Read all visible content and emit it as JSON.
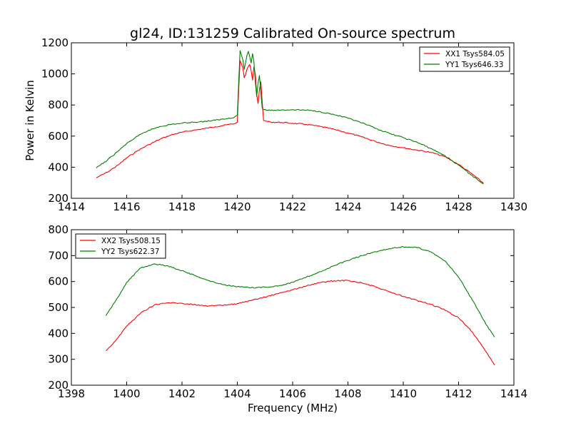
{
  "figure": {
    "title": "gl24, ID:131259 Calibrated On-source spectrum",
    "colors": {
      "red": "#ff0000",
      "green": "#007f00",
      "axes": "#000000",
      "background": "#ffffff"
    }
  },
  "chart_data": [
    {
      "type": "line",
      "title": "gl24, ID:131259 Calibrated On-source spectrum",
      "xlabel": "",
      "ylabel": "Power in Kelvin",
      "xlim": [
        1414,
        1430
      ],
      "ylim": [
        200,
        1200
      ],
      "xticks": [
        "1414",
        "1416",
        "1418",
        "1420",
        "1422",
        "1424",
        "1426",
        "1428",
        "1430"
      ],
      "yticks": [
        "200",
        "400",
        "600",
        "800",
        "1000",
        "1200"
      ],
      "grid": false,
      "legend": "top-right",
      "series": [
        {
          "name": "XX1 Tsys584.05",
          "color": "#ff0000",
          "points": [
            [
              1414.9,
              332
            ],
            [
              1415.3,
              368
            ],
            [
              1415.7,
              415
            ],
            [
              1416.0,
              460
            ],
            [
              1416.4,
              507
            ],
            [
              1416.8,
              545
            ],
            [
              1417.2,
              580
            ],
            [
              1417.6,
              607
            ],
            [
              1418.0,
              625
            ],
            [
              1418.4,
              637
            ],
            [
              1418.8,
              648
            ],
            [
              1419.2,
              660
            ],
            [
              1419.6,
              672
            ],
            [
              1419.9,
              680
            ],
            [
              1420.0,
              690
            ],
            [
              1420.05,
              900
            ],
            [
              1420.1,
              1085
            ],
            [
              1420.2,
              1040
            ],
            [
              1420.25,
              975
            ],
            [
              1420.35,
              1030
            ],
            [
              1420.45,
              1060
            ],
            [
              1420.5,
              1020
            ],
            [
              1420.55,
              960
            ],
            [
              1420.6,
              1045
            ],
            [
              1420.65,
              1000
            ],
            [
              1420.7,
              870
            ],
            [
              1420.75,
              810
            ],
            [
              1420.8,
              900
            ],
            [
              1420.85,
              950
            ],
            [
              1420.9,
              820
            ],
            [
              1420.95,
              700
            ],
            [
              1421.2,
              690
            ],
            [
              1421.6,
              688
            ],
            [
              1422.0,
              682
            ],
            [
              1422.5,
              675
            ],
            [
              1423.0,
              662
            ],
            [
              1423.5,
              643
            ],
            [
              1424.0,
              620
            ],
            [
              1424.5,
              595
            ],
            [
              1425.0,
              565
            ],
            [
              1425.5,
              540
            ],
            [
              1426.0,
              525
            ],
            [
              1426.5,
              510
            ],
            [
              1427.0,
              495
            ],
            [
              1427.5,
              468
            ],
            [
              1428.0,
              418
            ],
            [
              1428.5,
              355
            ],
            [
              1428.9,
              297
            ]
          ]
        },
        {
          "name": "YY1 Tsys646.33",
          "color": "#007f00",
          "points": [
            [
              1414.9,
              395
            ],
            [
              1415.3,
              445
            ],
            [
              1415.7,
              505
            ],
            [
              1416.0,
              552
            ],
            [
              1416.4,
              600
            ],
            [
              1416.8,
              637
            ],
            [
              1417.2,
              662
            ],
            [
              1417.6,
              675
            ],
            [
              1418.0,
              683
            ],
            [
              1418.4,
              689
            ],
            [
              1418.8,
              694
            ],
            [
              1419.2,
              702
            ],
            [
              1419.6,
              712
            ],
            [
              1419.9,
              722
            ],
            [
              1420.0,
              735
            ],
            [
              1420.05,
              950
            ],
            [
              1420.1,
              1150
            ],
            [
              1420.2,
              1090
            ],
            [
              1420.25,
              1030
            ],
            [
              1420.35,
              1120
            ],
            [
              1420.4,
              1145
            ],
            [
              1420.45,
              1110
            ],
            [
              1420.5,
              1070
            ],
            [
              1420.55,
              1130
            ],
            [
              1420.6,
              1080
            ],
            [
              1420.65,
              950
            ],
            [
              1420.7,
              855
            ],
            [
              1420.75,
              940
            ],
            [
              1420.8,
              990
            ],
            [
              1420.85,
              880
            ],
            [
              1420.9,
              780
            ],
            [
              1420.95,
              770
            ],
            [
              1421.2,
              765
            ],
            [
              1421.6,
              768
            ],
            [
              1422.0,
              770
            ],
            [
              1422.5,
              767
            ],
            [
              1423.0,
              757
            ],
            [
              1423.5,
              738
            ],
            [
              1424.0,
              715
            ],
            [
              1424.5,
              685
            ],
            [
              1425.0,
              650
            ],
            [
              1425.5,
              617
            ],
            [
              1426.0,
              590
            ],
            [
              1426.5,
              560
            ],
            [
              1427.0,
              520
            ],
            [
              1427.5,
              475
            ],
            [
              1428.0,
              413
            ],
            [
              1428.5,
              345
            ],
            [
              1428.9,
              292
            ]
          ]
        }
      ]
    },
    {
      "type": "line",
      "title": "",
      "xlabel": "Frequency (MHz)",
      "ylabel": "",
      "xlim": [
        1398,
        1414
      ],
      "ylim": [
        200,
        800
      ],
      "xticks": [
        "1398",
        "1400",
        "1402",
        "1404",
        "1406",
        "1408",
        "1410",
        "1412",
        "1414"
      ],
      "yticks": [
        "200",
        "300",
        "400",
        "500",
        "600",
        "700",
        "800"
      ],
      "grid": false,
      "legend": "top-left",
      "series": [
        {
          "name": "XX2 Tsys508.15",
          "color": "#ff0000",
          "points": [
            [
              1399.25,
              333
            ],
            [
              1399.6,
              372
            ],
            [
              1400.0,
              428
            ],
            [
              1400.5,
              478
            ],
            [
              1401.0,
              510
            ],
            [
              1401.5,
              518
            ],
            [
              1402.0,
              516
            ],
            [
              1402.5,
              510
            ],
            [
              1403.0,
              506
            ],
            [
              1403.5,
              508
            ],
            [
              1404.0,
              515
            ],
            [
              1404.5,
              526
            ],
            [
              1405.0,
              540
            ],
            [
              1405.5,
              554
            ],
            [
              1406.0,
              568
            ],
            [
              1406.5,
              583
            ],
            [
              1407.0,
              596
            ],
            [
              1407.5,
              603
            ],
            [
              1408.0,
              604
            ],
            [
              1408.5,
              595
            ],
            [
              1409.0,
              579
            ],
            [
              1409.5,
              560
            ],
            [
              1410.0,
              542
            ],
            [
              1410.5,
              527
            ],
            [
              1411.0,
              512
            ],
            [
              1411.5,
              490
            ],
            [
              1412.0,
              460
            ],
            [
              1412.5,
              405
            ],
            [
              1413.0,
              328
            ],
            [
              1413.3,
              278
            ]
          ]
        },
        {
          "name": "YY2 Tsys622.37",
          "color": "#007f00",
          "points": [
            [
              1399.25,
              468
            ],
            [
              1399.6,
              525
            ],
            [
              1400.0,
              597
            ],
            [
              1400.5,
              652
            ],
            [
              1401.0,
              668
            ],
            [
              1401.5,
              660
            ],
            [
              1402.0,
              642
            ],
            [
              1402.5,
              622
            ],
            [
              1403.0,
              602
            ],
            [
              1403.5,
              588
            ],
            [
              1404.0,
              580
            ],
            [
              1404.5,
              576
            ],
            [
              1405.0,
              578
            ],
            [
              1405.5,
              584
            ],
            [
              1406.0,
              597
            ],
            [
              1406.5,
              617
            ],
            [
              1407.0,
              638
            ],
            [
              1407.5,
              661
            ],
            [
              1408.0,
              681
            ],
            [
              1408.5,
              700
            ],
            [
              1409.0,
              715
            ],
            [
              1409.5,
              727
            ],
            [
              1410.0,
              734
            ],
            [
              1410.5,
              731
            ],
            [
              1411.0,
              715
            ],
            [
              1411.5,
              680
            ],
            [
              1412.0,
              617
            ],
            [
              1412.5,
              528
            ],
            [
              1413.0,
              433
            ],
            [
              1413.3,
              386
            ]
          ]
        }
      ]
    }
  ]
}
